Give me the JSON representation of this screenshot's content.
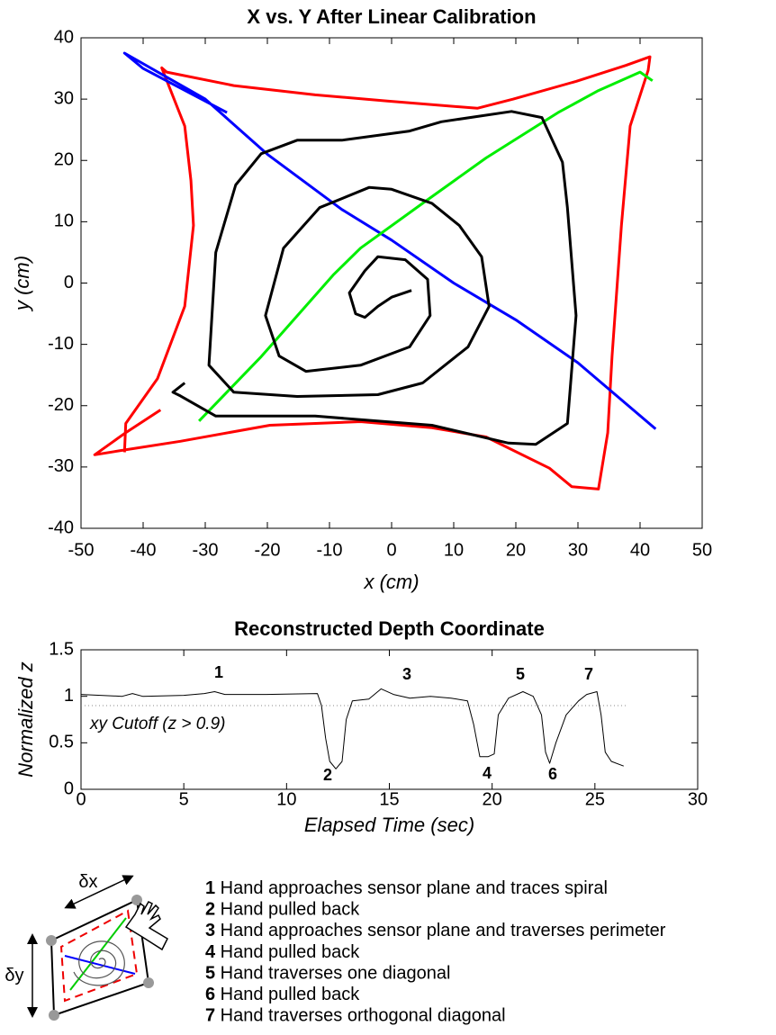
{
  "chart_data": [
    {
      "type": "line",
      "title": "X vs. Y After Linear Calibration",
      "xlabel": "x (cm)",
      "ylabel": "y (cm)",
      "xlim": [
        -50,
        50
      ],
      "ylim": [
        -40,
        40
      ],
      "xticks": [
        -50,
        -40,
        -30,
        -20,
        -10,
        0,
        10,
        20,
        30,
        40,
        50
      ],
      "yticks": [
        -40,
        -30,
        -20,
        -10,
        0,
        10,
        20,
        30,
        40
      ],
      "series": [
        {
          "color": "#ff0000",
          "x": [
            -37.2,
            -42.8,
            -47.8,
            -43.5,
            -34,
            -19.6,
            -5,
            6.5,
            15.2,
            25.4,
            29,
            33.3,
            34.8,
            35.5,
            37,
            38.4,
            41.3,
            41.6,
            37.7,
            29.7,
            19.6,
            13.8,
            -0.7,
            -12.3,
            -25.4,
            -36.2,
            -37,
            -33.3,
            -32.3,
            -31.9,
            -33.3,
            -37.7,
            -42.8,
            -43
          ],
          "values": [
            -20.7,
            -24.4,
            -28,
            -27.3,
            -25.8,
            -23.2,
            -22.6,
            -23.6,
            -25.1,
            -30.2,
            -33.2,
            -33.6,
            -24.4,
            -11.9,
            9.4,
            25.6,
            34.7,
            36.9,
            35.5,
            32.9,
            30,
            28.5,
            29.7,
            30.7,
            32.2,
            34.4,
            35.1,
            25.6,
            16.7,
            9.4,
            -3.8,
            -15.6,
            -22.9,
            -27.6
          ]
        },
        {
          "color": "#0000ff",
          "x": [
            -26.5,
            -40,
            -43,
            -30,
            -20,
            -8,
            0,
            10,
            20,
            30,
            42.5
          ],
          "values": [
            27.8,
            35,
            37.5,
            30,
            21,
            12,
            7,
            0,
            -6,
            -13,
            -23.8
          ]
        },
        {
          "color": "#00ee00",
          "x": [
            -31,
            -21,
            -9.4,
            -5,
            5,
            15.2,
            26.8,
            33.3,
            40,
            42
          ],
          "values": [
            -22.5,
            -12,
            1.3,
            5.7,
            13,
            20.4,
            27.8,
            31.4,
            34.4,
            33
          ]
        },
        {
          "color": "#000000",
          "x": [
            -33.3,
            -35.2,
            -34,
            -28.3,
            -12.3,
            6.5,
            18.8,
            23.2,
            28.3,
            29.7,
            28.3,
            27.5,
            24.2,
            19.3,
            8,
            2.9,
            -8,
            -15.2,
            -21,
            -25.1,
            -28.3,
            -29.4,
            -25.4,
            -15.2,
            -2.2,
            5,
            12.3,
            15.7,
            14.5,
            10.9,
            6.5,
            0,
            -3.6,
            -11.6,
            -17.4,
            -20.3,
            -18.1,
            -13.8,
            -5,
            2.9,
            6.2,
            5.8,
            2.2,
            -2.2,
            -4.3,
            -6.8,
            -5.8,
            -4.3,
            -2.2,
            0,
            3.2
          ],
          "values": [
            -16.3,
            -17.8,
            -18.4,
            -21.7,
            -21.7,
            -23.2,
            -26.1,
            -26.3,
            -22.9,
            -5.3,
            12.3,
            19.7,
            27,
            28,
            26.3,
            24.8,
            23.3,
            23.3,
            21.1,
            16,
            5,
            -13.4,
            -17.8,
            -18.5,
            -18.2,
            -16.3,
            -10.4,
            -3.8,
            4.3,
            9.4,
            13,
            15.3,
            15.6,
            12.3,
            5.7,
            -5.3,
            -11.9,
            -14.4,
            -13.4,
            -10.4,
            -5.3,
            0.6,
            3.8,
            4.3,
            2,
            -1.6,
            -5,
            -5.6,
            -3.8,
            -2.3,
            -1.2
          ]
        }
      ]
    },
    {
      "type": "line",
      "title": "Reconstructed Depth Coordinate",
      "xlabel": "Elapsed Time (sec)",
      "ylabel": "Normalized z",
      "xlim": [
        0,
        30
      ],
      "ylim": [
        0,
        1.5
      ],
      "xticks": [
        0,
        5,
        10,
        15,
        20,
        25,
        30
      ],
      "yticks": [
        0,
        0.5,
        1,
        1.5
      ],
      "x": [
        0,
        2,
        2.5,
        3,
        5,
        6,
        6.5,
        7,
        9,
        11.5,
        11.7,
        11.9,
        12.1,
        12.4,
        12.7,
        12.9,
        13.2,
        14,
        14.6,
        15.2,
        16,
        17,
        18,
        18.8,
        19.1,
        19.4,
        19.8,
        20.1,
        20.3,
        20.8,
        21.5,
        22,
        22.4,
        22.6,
        22.8,
        23.1,
        23.6,
        24.2,
        24.6,
        25.1,
        25.3,
        25.5,
        25.8,
        26.4
      ],
      "series": [
        {
          "color": "#000000",
          "values": [
            1.02,
            1.0,
            1.03,
            1.0,
            1.01,
            1.03,
            1.05,
            1.02,
            1.02,
            1.03,
            0.9,
            0.55,
            0.3,
            0.22,
            0.3,
            0.75,
            0.95,
            0.97,
            1.08,
            1.02,
            0.98,
            1.0,
            0.98,
            0.95,
            0.7,
            0.35,
            0.35,
            0.38,
            0.8,
            0.98,
            1.05,
            1.0,
            0.8,
            0.4,
            0.28,
            0.5,
            0.8,
            0.95,
            1.02,
            1.05,
            0.8,
            0.4,
            0.3,
            0.25
          ]
        }
      ],
      "cutoff": 0.9,
      "cutoff_label": "xy Cutoff (z > 0.9)",
      "annotations": [
        "1",
        "2",
        "3",
        "4",
        "5",
        "6",
        "7"
      ]
    }
  ],
  "diagram": {
    "dx_label": "δx",
    "dy_label": "δy",
    "steps": [
      {
        "number": "1",
        "text": " Hand approaches sensor plane and traces spiral"
      },
      {
        "number": "2",
        "text": " Hand pulled back"
      },
      {
        "number": "3",
        "text": " Hand approaches sensor plane and traverses perimeter"
      },
      {
        "number": "4",
        "text": " Hand pulled back"
      },
      {
        "number": "5",
        "text": " Hand traverses one diagonal"
      },
      {
        "number": "6",
        "text": " Hand pulled back"
      },
      {
        "number": "7",
        "text": " Hand traverses orthogonal diagonal"
      }
    ]
  }
}
